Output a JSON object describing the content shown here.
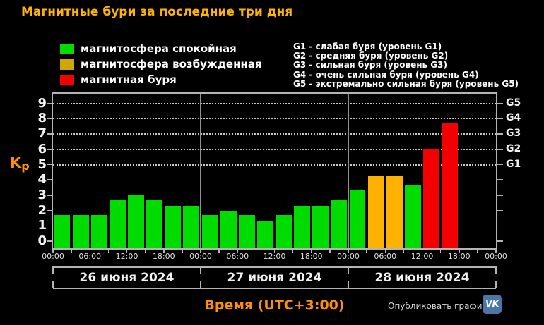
{
  "title": "Магнитные бури за последние три дня",
  "colors": {
    "background": "#000000",
    "title_yellow": "#ffb400",
    "accent_orange": "#ff9100",
    "calm_green": "#00dc00",
    "excited_yellow_legend": "#cfa602",
    "excited_orange_bar": "#ffb100",
    "storm_red": "#f40000",
    "axis_gray": "#b4b4b4",
    "grid_dot_gray": "#c8c8c8",
    "divider_gray": "#909090",
    "vk_blue": "#4a76a8"
  },
  "legend": [
    {
      "label": "магнитосфера спокойная",
      "color": "#00dc00"
    },
    {
      "label": "магнитосфера возбужденная",
      "color": "#cfa602"
    },
    {
      "label": "магнитная буря",
      "color": "#f40000"
    }
  ],
  "storm_scale": [
    "G1 - слабая буря (уровень G1)",
    "G2 - средняя буря (уровень G2)",
    "G3 - сильная буря (уровень G3)",
    "G4 - очень сильная буря (уровень G4)",
    "G5 - экстремально сильная буря (уровень G5)"
  ],
  "y_axis": {
    "label_main": "K",
    "label_sub": "p",
    "ticks": [
      0,
      1,
      2,
      3,
      4,
      5,
      6,
      7,
      8,
      9
    ]
  },
  "right_axis": {
    "labels": [
      "G1",
      "G2",
      "G3",
      "G4",
      "G5"
    ],
    "at_kp": [
      5,
      6,
      7,
      8,
      9
    ]
  },
  "x_axis": {
    "label": "Время (UTC+3:00)",
    "time_labels": [
      "00:00",
      "06:00",
      "12:00",
      "18:00"
    ]
  },
  "footer": {
    "publish_label": "Опубликовать график:",
    "vk_label": "VK"
  },
  "chart_data": {
    "type": "bar",
    "title": "Магнитные бури за последние три дня",
    "ylabel": "Kp",
    "xlabel": "Время (UTC+3:00)",
    "ylim": [
      0,
      9.6
    ],
    "bar_interval_hours": 3,
    "hours_total": 72,
    "grid_kp_levels": [
      5,
      6,
      7,
      8,
      9
    ],
    "grid_on": true,
    "legend_position": "top-left",
    "color_rules": {
      "green_kp_below": 4,
      "orange_kp_below": 5,
      "red_kp_from": 5
    },
    "days": [
      {
        "date": "26 июня 2024",
        "values": [
          1.7,
          1.7,
          1.7,
          2.7,
          3.0,
          2.7,
          2.3,
          2.3
        ]
      },
      {
        "date": "27 июня 2024",
        "values": [
          1.7,
          2.0,
          1.7,
          1.3,
          1.7,
          2.3,
          2.3,
          2.7
        ]
      },
      {
        "date": "28 июня 2024",
        "values": [
          3.3,
          4.3,
          4.3,
          3.7,
          6.0,
          7.7
        ]
      }
    ]
  }
}
